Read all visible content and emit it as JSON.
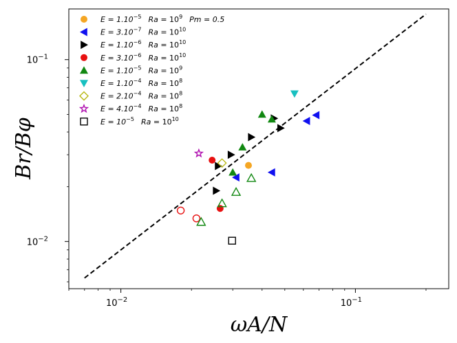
{
  "chart_data": {
    "type": "scatter",
    "xscale": "log",
    "yscale": "log",
    "xlim": [
      0.006,
      0.25
    ],
    "ylim": [
      0.0055,
      0.19
    ],
    "xlabel": "ωA/N",
    "ylabel": "Br/Bφ",
    "grid": false,
    "legend_position": "top-left",
    "x_ticks": [
      {
        "value": 0.01,
        "mant": "10",
        "exp": "−2"
      },
      {
        "value": 0.1,
        "mant": "10",
        "exp": "−1"
      }
    ],
    "y_ticks": [
      {
        "value": 0.01,
        "mant": "10",
        "exp": "−2"
      },
      {
        "value": 0.1,
        "mant": "10",
        "exp": "−1"
      }
    ],
    "fit_line": {
      "style": "dashed",
      "color": "#000000",
      "x": [
        0.007,
        0.2
      ],
      "y": [
        0.0063,
        0.178
      ]
    },
    "series": [
      {
        "name": "E=1.10^-5 Ra=10^9 Pm=0.5",
        "label_E": "E = 1.10",
        "label_E_exp": "−5",
        "label_Ra_exp": "9",
        "label_extra": "Pm = 0.5",
        "marker": "circle",
        "color": "#f5a623",
        "points": [
          [
            0.035,
            0.0262
          ]
        ],
        "hollow_points": []
      },
      {
        "name": "E=3.10^-7 Ra=10^10",
        "label_E": "E = 3.10",
        "label_E_exp": "−7",
        "label_Ra_exp": "10",
        "label_extra": "",
        "marker": "triangle-left",
        "color": "#1010f0",
        "points": [
          [
            0.031,
            0.0225
          ],
          [
            0.044,
            0.024
          ],
          [
            0.062,
            0.046
          ],
          [
            0.068,
            0.0495
          ]
        ],
        "hollow_points": []
      },
      {
        "name": "E=1.10^-6 Ra=10^10",
        "label_E": "E = 1.10",
        "label_E_exp": "−6",
        "label_Ra_exp": "10",
        "label_extra": "",
        "marker": "triangle-right",
        "color": "#000000",
        "points": [
          [
            0.0255,
            0.019
          ],
          [
            0.026,
            0.026
          ],
          [
            0.0295,
            0.03
          ],
          [
            0.036,
            0.0375
          ],
          [
            0.045,
            0.0475
          ],
          [
            0.048,
            0.042
          ]
        ],
        "hollow_points": []
      },
      {
        "name": "E=3.10^-6 Ra=10^10",
        "label_E": "E = 3.10",
        "label_E_exp": "−6",
        "label_Ra_exp": "10",
        "label_extra": "",
        "marker": "circle",
        "color": "#e81010",
        "points": [
          [
            0.0245,
            0.028
          ],
          [
            0.0265,
            0.0152
          ]
        ],
        "hollow_points": [
          [
            0.018,
            0.0148
          ],
          [
            0.021,
            0.0134
          ]
        ]
      },
      {
        "name": "E=1.10^-5 Ra=10^9",
        "label_E": "E = 1.10",
        "label_E_exp": "−5",
        "label_Ra_exp": "9",
        "label_extra": "",
        "marker": "triangle-up",
        "color": "#118811",
        "points": [
          [
            0.03,
            0.024
          ],
          [
            0.033,
            0.033
          ],
          [
            0.04,
            0.05
          ],
          [
            0.044,
            0.047
          ]
        ],
        "hollow_points": [
          [
            0.022,
            0.0128
          ],
          [
            0.027,
            0.0162
          ],
          [
            0.031,
            0.0187
          ],
          [
            0.036,
            0.0223
          ]
        ]
      },
      {
        "name": "E=1.10^-4 Ra=10^8",
        "label_E": "E = 1.10",
        "label_E_exp": "−4",
        "label_Ra_exp": "8",
        "label_extra": "",
        "marker": "triangle-down",
        "color": "#18c0c0",
        "points": [
          [
            0.055,
            0.065
          ]
        ],
        "hollow_points": []
      },
      {
        "name": "E=2.10^-4 Ra=10^8",
        "label_E": "E = 2.10",
        "label_E_exp": "−4",
        "label_Ra_exp": "8",
        "label_extra": "",
        "marker": "diamond",
        "color": "#b8b814",
        "points": [],
        "hollow_points": [
          [
            0.027,
            0.027
          ]
        ]
      },
      {
        "name": "E=4.10^-4 Ra=10^8",
        "label_E": "E = 4.10",
        "label_E_exp": "−4",
        "label_Ra_exp": "8",
        "label_extra": "",
        "marker": "star",
        "color": "#b010b0",
        "points": [],
        "hollow_points": [
          [
            0.0215,
            0.0305
          ]
        ]
      },
      {
        "name": "E=10^-5 Ra=10^10",
        "label_E": "E = 10",
        "label_E_exp": "−5",
        "label_Ra_exp": "10",
        "label_extra": "",
        "marker": "square",
        "color": "#000000",
        "points": [],
        "hollow_points": [
          [
            0.0298,
            0.0101
          ]
        ]
      }
    ]
  }
}
